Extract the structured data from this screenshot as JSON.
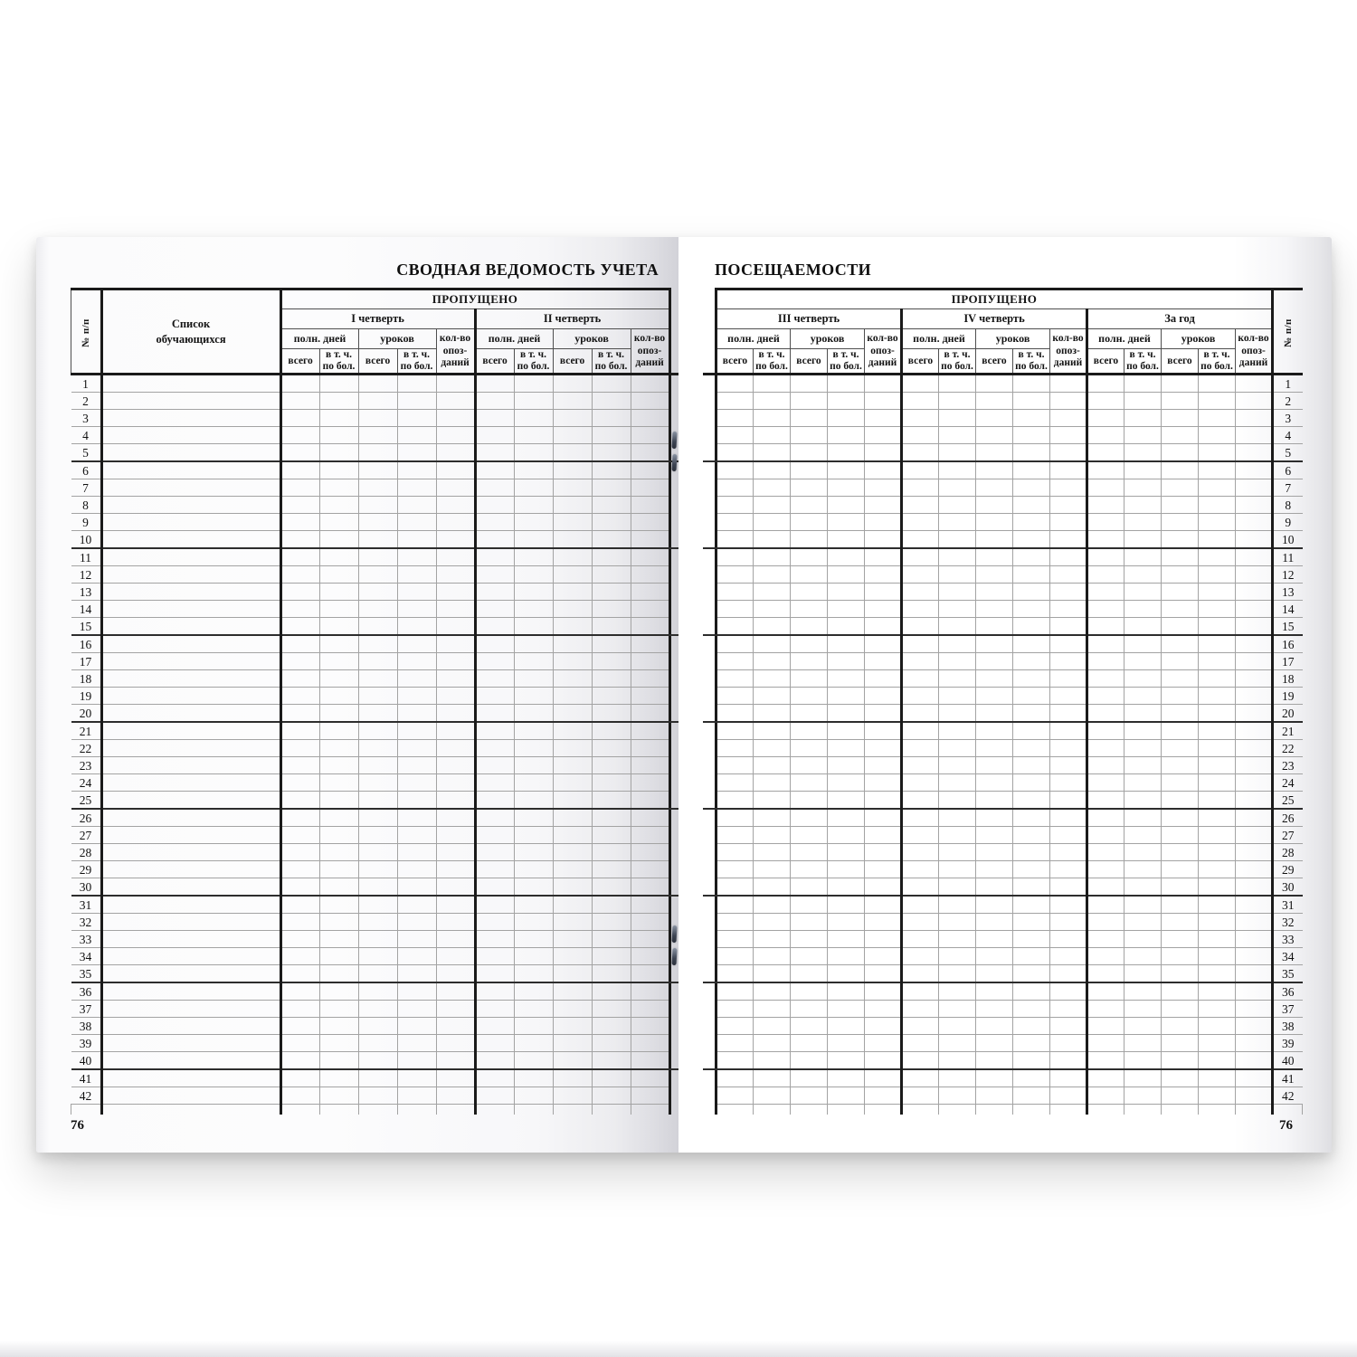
{
  "colors": {
    "ink": "#1a1a1a",
    "thin_line": "#a3a3a3",
    "header_line": "#4f4f4f",
    "group_line": "#2d2d2d",
    "staple": "#3d4452",
    "paper_shadow": "#d2d2d8"
  },
  "labels": {
    "missed": "ПРОПУЩЕНО",
    "row_number": "№ п/п",
    "students_list": [
      "Список",
      "обучающихся"
    ],
    "full_days": "полн. дней",
    "lessons": "уроков",
    "lateness_lines": [
      "кол-во",
      "опоз-",
      "даний"
    ],
    "total": "всего",
    "incl_sick_lines": [
      "в т. ч.",
      "по бол."
    ]
  },
  "left_page": {
    "title": "СВОДНАЯ ВЕДОМОСТЬ УЧЕТА",
    "page_number": "76",
    "quarters": [
      "I четверть",
      "II четверть"
    ]
  },
  "right_page": {
    "title": "ПОСЕЩАЕМОСТИ",
    "page_number": "76",
    "quarters": [
      "III четверть",
      "IV четверть",
      "За год"
    ]
  },
  "table": {
    "group_every": 5,
    "cells_empty": true,
    "row_numbers": [
      1,
      2,
      3,
      4,
      5,
      6,
      7,
      8,
      9,
      10,
      11,
      12,
      13,
      14,
      15,
      16,
      17,
      18,
      19,
      20,
      21,
      22,
      23,
      24,
      25,
      26,
      27,
      28,
      29,
      30,
      31,
      32,
      33,
      34,
      35,
      36,
      37,
      38,
      39,
      40,
      41,
      42
    ]
  }
}
